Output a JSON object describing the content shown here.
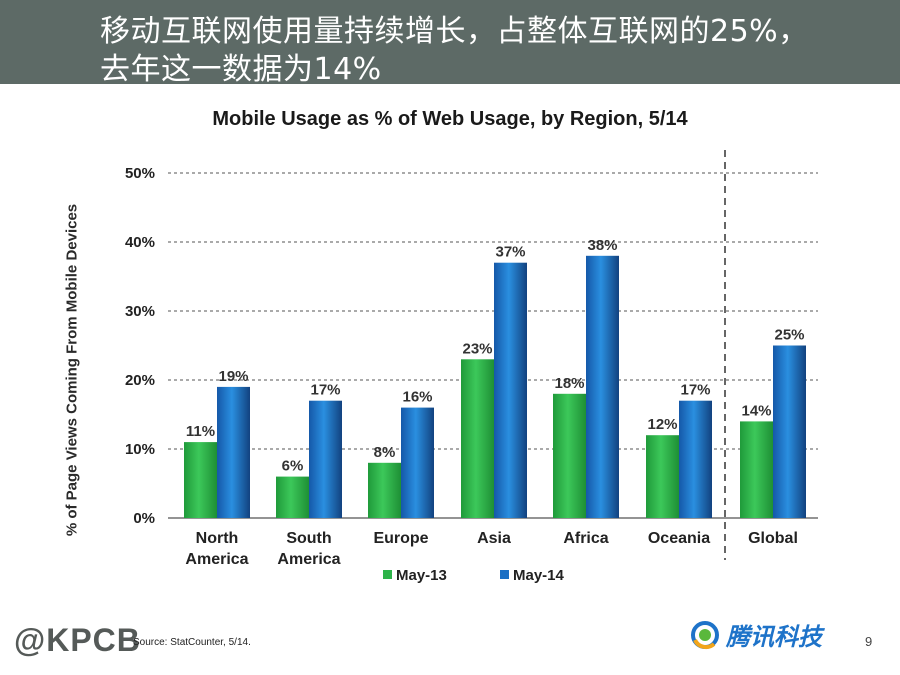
{
  "header": {
    "line1": "移动互联网使用量持续增长，占整体互联网的25%，",
    "line2": "去年这一数据为14%"
  },
  "chart_data": {
    "type": "bar",
    "title": "Mobile Usage as % of Web Usage, by Region, 5/14",
    "ylabel": "% of Page Views Coming From Mobile Devices",
    "xlabel": "",
    "ylim": [
      0,
      50
    ],
    "yticks": [
      "0%",
      "10%",
      "20%",
      "30%",
      "40%",
      "50%"
    ],
    "ytick_values": [
      0,
      10,
      20,
      30,
      40,
      50
    ],
    "categories": [
      "North America",
      "South America",
      "Europe",
      "Asia",
      "Africa",
      "Oceania",
      "Global"
    ],
    "category_lines": [
      [
        "North",
        "America"
      ],
      [
        "South",
        "America"
      ],
      [
        "Europe"
      ],
      [
        "Asia"
      ],
      [
        "Africa"
      ],
      [
        "Oceania"
      ],
      [
        "Global"
      ]
    ],
    "series": [
      {
        "name": "May-13",
        "values": [
          11,
          6,
          8,
          23,
          18,
          12,
          14
        ],
        "labels": [
          "11%",
          "6%",
          "8%",
          "23%",
          "18%",
          "12%",
          "14%"
        ],
        "color": "#2db34a"
      },
      {
        "name": "May-14",
        "values": [
          19,
          17,
          16,
          37,
          38,
          17,
          25
        ],
        "labels": [
          "19%",
          "17%",
          "16%",
          "37%",
          "38%",
          "17%",
          "25%"
        ],
        "color": "#1a6fc4"
      }
    ],
    "separator_before": "Global",
    "grid": true,
    "legend_position": "bottom"
  },
  "footer": {
    "logo": "@KPCB",
    "source": "Source: StatCounter, 5/14.",
    "brand": "腾讯科技",
    "page_number": "9"
  }
}
